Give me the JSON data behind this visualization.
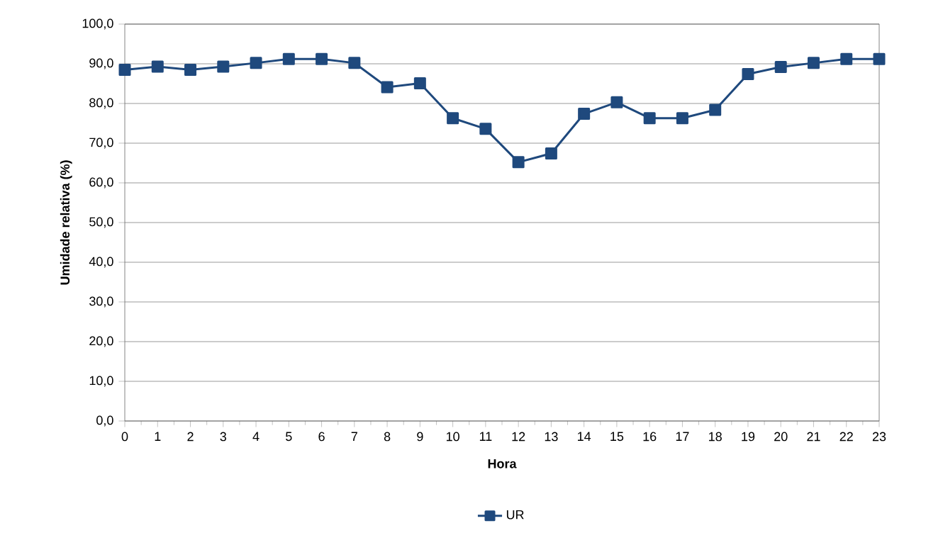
{
  "chart_data": {
    "type": "line",
    "xlabel": "Hora",
    "ylabel": "Umidade relativa (%)",
    "x": [
      0,
      1,
      2,
      3,
      4,
      5,
      6,
      7,
      8,
      9,
      10,
      11,
      12,
      13,
      14,
      15,
      16,
      17,
      18,
      19,
      20,
      21,
      22,
      23
    ],
    "series": [
      {
        "name": "UR",
        "color": "#1f497d",
        "values": [
          88.5,
          89.3,
          88.5,
          89.3,
          90.2,
          91.2,
          91.2,
          90.2,
          84.1,
          85.1,
          76.3,
          73.6,
          65.2,
          67.4,
          77.4,
          80.3,
          76.3,
          76.3,
          78.4,
          87.4,
          89.2,
          90.2,
          91.2,
          91.2
        ]
      }
    ],
    "xlim": [
      0,
      23
    ],
    "xticks": [
      0,
      1,
      2,
      3,
      4,
      5,
      6,
      7,
      8,
      9,
      10,
      11,
      12,
      13,
      14,
      15,
      16,
      17,
      18,
      19,
      20,
      21,
      22,
      23
    ],
    "ylim": [
      0,
      100
    ],
    "yticks": [
      {
        "value": 0,
        "label": "0,0"
      },
      {
        "value": 10,
        "label": "10,0"
      },
      {
        "value": 20,
        "label": "20,0"
      },
      {
        "value": 30,
        "label": "30,0"
      },
      {
        "value": 40,
        "label": "40,0"
      },
      {
        "value": 50,
        "label": "50,0"
      },
      {
        "value": 60,
        "label": "60,0"
      },
      {
        "value": 70,
        "label": "70,0"
      },
      {
        "value": 80,
        "label": "80,0"
      },
      {
        "value": 90,
        "label": "90,0"
      },
      {
        "value": 100,
        "label": "100,0"
      }
    ],
    "grid": "y",
    "legend": "bottom",
    "marker": "square",
    "line_style": "solid"
  }
}
